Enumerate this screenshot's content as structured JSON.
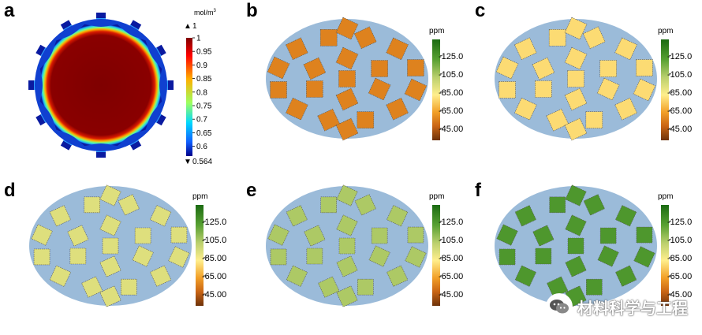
{
  "panels": [
    {
      "label": "a"
    },
    {
      "label": "b",
      "pads_level": 55
    },
    {
      "label": "c",
      "pads_level": 80
    },
    {
      "label": "d",
      "pads_level": 95
    },
    {
      "label": "e",
      "pads_level": 108
    },
    {
      "label": "f",
      "pads_level": 128
    }
  ],
  "colorbar_a": {
    "unit": "mol/m",
    "unit_sup": "3",
    "max_marker": "1",
    "min_marker": "0.564",
    "ticks": [
      "1",
      "0.95",
      "0.9",
      "0.85",
      "0.8",
      "0.75",
      "0.7",
      "0.65",
      "0.6"
    ],
    "tick_values": [
      1,
      0.95,
      0.9,
      0.85,
      0.8,
      0.75,
      0.7,
      0.65,
      0.6
    ],
    "range": [
      0.564,
      1
    ]
  },
  "colorbar_ppm": {
    "unit": "ppm",
    "ticks": [
      "125.0",
      "105.0",
      "85.00",
      "65.00",
      "45.00"
    ],
    "tick_values": [
      125,
      105,
      85,
      65,
      45
    ],
    "range": [
      32,
      143
    ]
  },
  "colors": {
    "background_domain": "#9bbbd9",
    "rainbow_high": "#7f0000",
    "ppm_low": "#7b3a12",
    "ppm_mid": "#fff59a",
    "ppm_high": "#1b6b12"
  },
  "watermark": {
    "text": "材料科学与工程",
    "icon": "wechat-icon"
  }
}
